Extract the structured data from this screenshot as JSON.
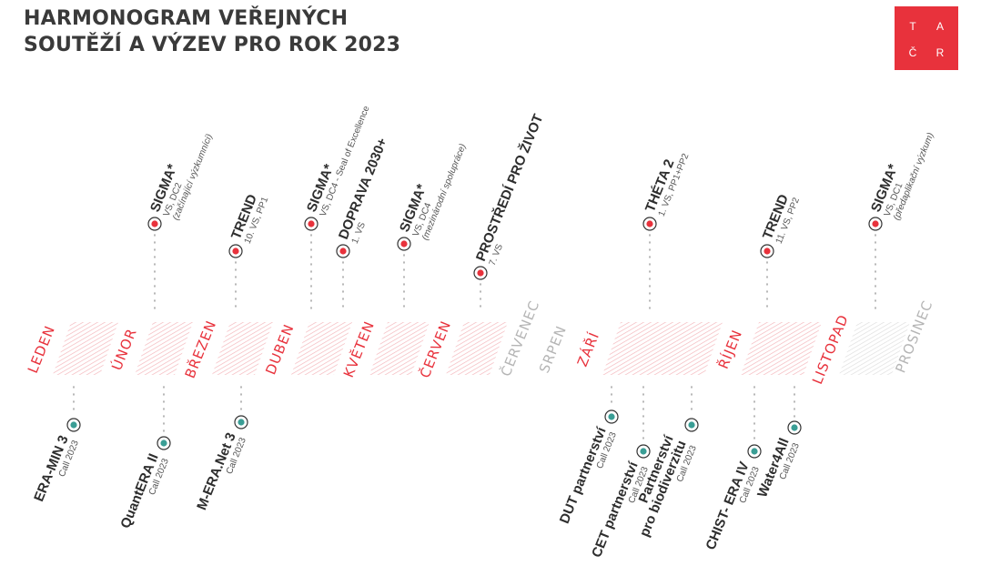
{
  "title": {
    "line1": "HARMONOGRAM VEŘEJNÝCH",
    "line2": "SOUTĚŽÍ A VÝZEV PRO ROK 2023"
  },
  "logo": {
    "letters": [
      "T",
      "A",
      "Č",
      "R"
    ],
    "color": "#e8323c"
  },
  "colors": {
    "active": "#e8323c",
    "inactive": "#b5b5b5",
    "bottom": "#3a9e95",
    "text": "#2e2e2e",
    "stripe": "#f6c4c7"
  },
  "months": [
    {
      "label": "LEDEN",
      "active": true
    },
    {
      "label": "ÚNOR",
      "active": true
    },
    {
      "label": "BŘEZEN",
      "active": true
    },
    {
      "label": "DUBEN",
      "active": true
    },
    {
      "label": "KVĚTEN",
      "active": true
    },
    {
      "label": "ČERVEN",
      "active": true
    },
    {
      "label": "ČERVENEC",
      "active": false
    },
    {
      "label": "SRPEN",
      "active": false
    },
    {
      "label": "ZÁŘÍ",
      "active": true
    },
    {
      "label": "ŘÍJEN",
      "active": true
    },
    {
      "label": "LISTOPAD",
      "active": true
    },
    {
      "label": "PROSINEC",
      "active": false
    }
  ],
  "top_events": [
    {
      "name": "SIGMA*",
      "sub1": "VS, DC2",
      "sub2": "(začínající výzkumníci)"
    },
    {
      "name": "TREND",
      "sub1": "10. VS, PP1",
      "sub2": ""
    },
    {
      "name": "SIGMA*",
      "sub1": "VS, DC4 - Seal of Excellence",
      "sub2": ""
    },
    {
      "name": "DOPRAVA 2030+",
      "sub1": "1. VS",
      "sub2": ""
    },
    {
      "name": "SIGMA*",
      "sub1": "VS, DC4",
      "sub2": "(mezinárodní spolupráce)"
    },
    {
      "name": "PROSTŘEDÍ PRO ŽIVOT",
      "sub1": "7. VS",
      "sub2": ""
    },
    {
      "name": "THÉTA 2",
      "sub1": "1. VS, PP1+PP2",
      "sub2": ""
    },
    {
      "name": "TREND",
      "sub1": "11. VS, PP2",
      "sub2": ""
    },
    {
      "name": "SIGMA*",
      "sub1": "VS, DC1",
      "sub2": "(předaplikační výzkum)"
    }
  ],
  "bottom_events": [
    {
      "name": "ERA-MIN 3",
      "name2": "",
      "sub": "Call 2023"
    },
    {
      "name": "QuantERA II",
      "name2": "",
      "sub": "Call 2023"
    },
    {
      "name": "M-ERA.Net 3",
      "name2": "",
      "sub": "Call 2023"
    },
    {
      "name": "DUT partnerství",
      "name2": "",
      "sub": "Call 2023"
    },
    {
      "name": "CET partnerství",
      "name2": "",
      "sub": "Call 2023"
    },
    {
      "name": "Partnerství",
      "name2": "pro biodiverzitu",
      "sub": "Call 2023"
    },
    {
      "name": "CHIST- ERA IV",
      "name2": "",
      "sub": "Call 2023"
    },
    {
      "name": "Water4All",
      "name2": "",
      "sub": "Call 2023"
    }
  ]
}
